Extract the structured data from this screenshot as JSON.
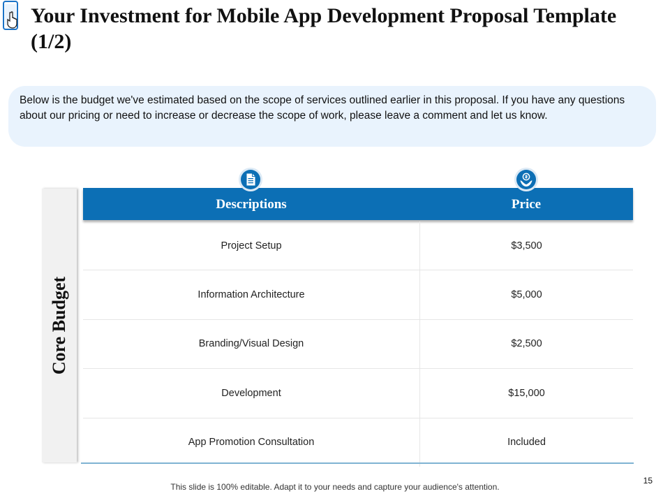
{
  "slide": {
    "title": "Your Investment for Mobile App Development Proposal Template (1/2)",
    "intro": "Below is the budget we've estimated based on the scope of services outlined earlier in this proposal. If you have any questions about our pricing or need to increase or decrease the scope of work, please leave a comment and let us know.",
    "side_label": "Core Budget",
    "footer": "This slide is 100% editable. Adapt it to your needs and capture your audience's attention.",
    "page_number": "15"
  },
  "table": {
    "headers": {
      "description": "Descriptions",
      "price": "Price"
    },
    "rows": [
      {
        "description": "Project Setup",
        "price": "$3,500"
      },
      {
        "description": "Information Architecture",
        "price": "$5,000"
      },
      {
        "description": "Branding/Visual Design",
        "price": "$2,500"
      },
      {
        "description": "Development",
        "price": "$15,000"
      },
      {
        "description": "App Promotion Consultation",
        "price": "Included"
      }
    ]
  },
  "icons": {
    "logo": "phone-tap-icon",
    "description_header": "document-icon",
    "price_header": "money-hand-icon"
  },
  "colors": {
    "accent": "#0c6fb5",
    "intro_bg": "#e9f3fd",
    "side_bg": "#f1f1f1"
  }
}
